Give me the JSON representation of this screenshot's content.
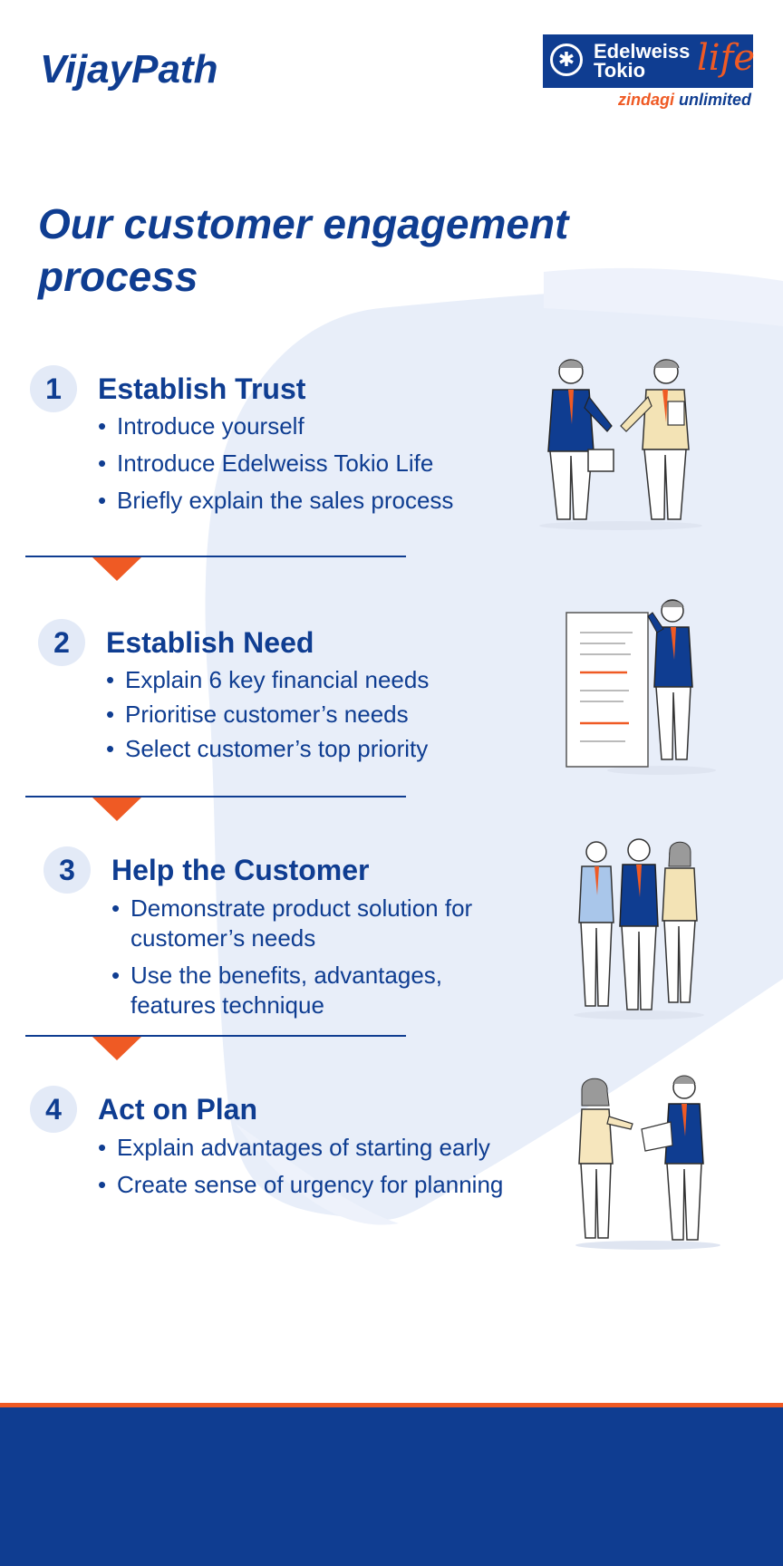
{
  "brand": {
    "name": "VijayPath"
  },
  "logo": {
    "line1": "Edelweiss",
    "line2": "Tokio",
    "life": "life",
    "tagline_part1": "zindagi",
    "tagline_part2": "unlimited"
  },
  "title": "Our customer engagement process",
  "steps": [
    {
      "number": "1",
      "title": "Establish Trust",
      "bullets": [
        "Introduce yourself",
        "Introduce Edelweiss Tokio Life",
        "Briefly explain the sales process"
      ]
    },
    {
      "number": "2",
      "title": "Establish Need",
      "bullets": [
        "Explain 6 key financial needs",
        "Prioritise customer’s needs",
        "Select customer’s top priority"
      ]
    },
    {
      "number": "3",
      "title": "Help the Customer",
      "bullets": [
        "Demonstrate product solution for customer’s needs",
        "Use the benefits, advantages, features technique"
      ]
    },
    {
      "number": "4",
      "title": "Act on Plan",
      "bullets": [
        "Explain advantages of starting early",
        "Create sense of urgency for planning"
      ]
    }
  ],
  "colors": {
    "brand_blue": "#0f3d91",
    "accent_orange": "#ef5a24",
    "circle_bg": "#e3eaf7",
    "brush_bg": "#e8eef9"
  },
  "illustrations": [
    "two-businessmen-handshake",
    "presenter-with-checklist-board",
    "team-of-three-professionals",
    "advisor-with-customer-document"
  ]
}
